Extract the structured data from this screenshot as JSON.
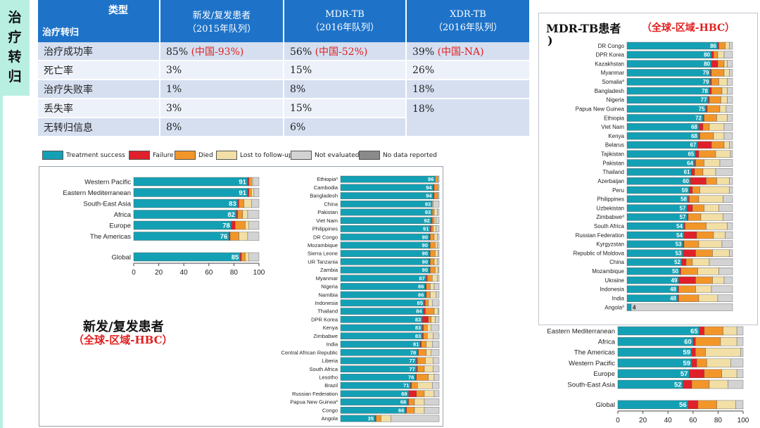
{
  "sidebar": {
    "label_chars": [
      "治",
      "疗",
      "转",
      "归"
    ]
  },
  "table": {
    "header": {
      "type_label": "类型",
      "row_label": "治疗转归",
      "columns": [
        {
          "line1": "新发/复发患者",
          "line2": "（2015年队列）"
        },
        {
          "line1": "MDR-TB",
          "line2": "（2016年队列）"
        },
        {
          "line1": "XDR-TB",
          "line2": "（2016年队列）"
        }
      ]
    },
    "rows": [
      {
        "label": "治疗成功率",
        "cells": [
          {
            "v": "85%",
            "note": "(中国-93%)"
          },
          {
            "v": "56%",
            "note": "(中国-52%)"
          },
          {
            "v": "39%",
            "note": "(中国-NA)"
          }
        ]
      },
      {
        "label": "死亡率",
        "cells": [
          {
            "v": "3%"
          },
          {
            "v": "15%"
          },
          {
            "v": "26%"
          }
        ]
      },
      {
        "label": "治疗失败率",
        "cells": [
          {
            "v": "1%"
          },
          {
            "v": "8%"
          },
          {
            "v": "18%"
          }
        ]
      },
      {
        "label": "丢失率",
        "cells": [
          {
            "v": "3%"
          },
          {
            "v": "15%"
          },
          {
            "v": "18%"
          }
        ]
      },
      {
        "label": "无转归信息",
        "cells": [
          {
            "v": "8%"
          },
          {
            "v": "6%"
          }
        ]
      }
    ]
  },
  "legend": [
    {
      "label": "Treatment success",
      "color": "#14a0b4"
    },
    {
      "label": "Failure",
      "color": "#e0202a"
    },
    {
      "label": "Died",
      "color": "#f2962a"
    },
    {
      "label": "Lost to follow-up",
      "color": "#f2dfa6"
    },
    {
      "label": "Not evaluated",
      "color": "#d3d3d3"
    },
    {
      "label": "No data reported",
      "color": "#8a8a8a"
    }
  ],
  "captions": {
    "left_title": "新发/复发患者",
    "left_sub": "（全球-区域-HBC）",
    "right_title": "MDR-TB患者",
    "right_sub": "（全球-区域-HBC）",
    "right_paren": ")"
  },
  "chart_data": [
    {
      "type": "bar",
      "stacked": true,
      "orientation": "horizontal",
      "xlim": [
        0,
        100
      ],
      "xticks": [
        0,
        20,
        40,
        60,
        80,
        100
      ],
      "categories": [
        "Western Pacific",
        "Eastern Mediterranean",
        "South-East Asia",
        "Africa",
        "Europe",
        "The Americas",
        "Global"
      ],
      "series": [
        {
          "name": "Treatment success",
          "values": [
            91,
            91,
            83,
            82,
            78,
            76,
            85
          ]
        },
        {
          "name": "Failure",
          "values": [
            1,
            1,
            1,
            1,
            3,
            1,
            1
          ]
        },
        {
          "name": "Died",
          "values": [
            2,
            2,
            4,
            4,
            8,
            7,
            3
          ]
        },
        {
          "name": "Lost to follow-up",
          "values": [
            1,
            2,
            6,
            4,
            3,
            7,
            3
          ]
        },
        {
          "name": "Not evaluated",
          "values": [
            5,
            4,
            6,
            9,
            8,
            9,
            8
          ]
        }
      ]
    },
    {
      "type": "bar",
      "stacked": true,
      "orientation": "horizontal",
      "xlim": [
        0,
        100
      ],
      "categories": [
        "Ethiopia",
        "Cambodia",
        "Bangladesh",
        "China",
        "Pakistan",
        "Viet Nam",
        "Philippines",
        "DR Congo",
        "Mozambique",
        "Sierra Leone",
        "UR Tanzania",
        "Zambia",
        "Myanmar",
        "Nigeria",
        "Namibia",
        "Indonesia",
        "Thailand",
        "DPR Korea",
        "Kenya",
        "Zimbabwe",
        "India",
        "Central African Republic",
        "Liberia",
        "South Africa",
        "Lesotho",
        "Brazil",
        "Russian Federation",
        "Papua New Guinea",
        "Congo",
        "Angola"
      ],
      "category_notes": {
        "Ethiopia": "a",
        "Papua New Guinea": "a"
      },
      "series": [
        {
          "name": "Treatment success",
          "values": [
            96,
            94,
            94,
            93,
            93,
            92,
            91,
            90,
            90,
            90,
            90,
            90,
            87,
            86,
            86,
            85,
            84,
            83,
            83,
            83,
            81,
            78,
            77,
            77,
            76,
            71,
            69,
            68,
            66,
            35
          ]
        },
        {
          "name": "Failure",
          "values": [
            0,
            1,
            1,
            0,
            0,
            1,
            1,
            1,
            1,
            1,
            1,
            1,
            1,
            1,
            1,
            1,
            2,
            6,
            1,
            1,
            1,
            1,
            1,
            1,
            1,
            1,
            8,
            1,
            1,
            1
          ]
        },
        {
          "name": "Died",
          "values": [
            2,
            3,
            3,
            0,
            2,
            2,
            2,
            4,
            5,
            5,
            4,
            5,
            5,
            4,
            4,
            3,
            9,
            3,
            4,
            4,
            5,
            8,
            8,
            7,
            12,
            6,
            8,
            6,
            8,
            5
          ]
        },
        {
          "name": "Lost to follow-up",
          "values": [
            1,
            1,
            1,
            1,
            3,
            2,
            3,
            3,
            2,
            3,
            3,
            3,
            5,
            4,
            6,
            4,
            4,
            4,
            4,
            6,
            6,
            5,
            8,
            9,
            6,
            15,
            10,
            10,
            10,
            10
          ]
        },
        {
          "name": "Not evaluated",
          "values": [
            1,
            1,
            1,
            6,
            2,
            3,
            3,
            2,
            2,
            1,
            2,
            1,
            2,
            5,
            3,
            7,
            1,
            4,
            8,
            6,
            7,
            8,
            6,
            6,
            5,
            7,
            5,
            15,
            15,
            49
          ]
        }
      ]
    },
    {
      "type": "bar",
      "stacked": true,
      "orientation": "horizontal",
      "xlim": [
        0,
        100
      ],
      "categories": [
        "DR Congo",
        "DPR Korea",
        "Kazakhstan",
        "Myanmar",
        "Somalia",
        "Bangladesh",
        "Nigeria",
        "Papua New Guinea",
        "Ethiopia",
        "Viet Nam",
        "Kenya",
        "Belarus",
        "Tajikistan",
        "Pakistan",
        "Thailand",
        "Azerbaijan",
        "Peru",
        "Philippines",
        "Uzbekistan",
        "Zimbabwe",
        "South Africa",
        "Russian Federation",
        "Kyrgyzstan",
        "Republic of Moldova",
        "China",
        "Mozambique",
        "Ukraine",
        "Indonesia",
        "India",
        "Angola"
      ],
      "category_notes": {
        "Somalia": "a",
        "Zimbabwe": "a",
        "Angola": "a"
      },
      "series": [
        {
          "name": "Treatment success",
          "values": [
            86,
            80,
            80,
            79,
            79,
            78,
            77,
            75,
            72,
            68,
            68,
            67,
            65,
            64,
            61,
            60,
            59,
            58,
            57,
            57,
            54,
            54,
            53,
            53,
            52,
            50,
            49,
            48,
            48,
            4
          ]
        },
        {
          "name": "Failure",
          "values": [
            1,
            2,
            6,
            1,
            1,
            2,
            1,
            1,
            1,
            4,
            1,
            13,
            3,
            1,
            3,
            15,
            3,
            1,
            5,
            1,
            1,
            12,
            1,
            12,
            4,
            1,
            16,
            1,
            1,
            0
          ]
        },
        {
          "name": "Died",
          "values": [
            6,
            4,
            6,
            12,
            7,
            10,
            11,
            12,
            12,
            6,
            13,
            12,
            16,
            8,
            8,
            10,
            7,
            9,
            11,
            12,
            20,
            16,
            14,
            16,
            6,
            16,
            16,
            16,
            19,
            0
          ]
        },
        {
          "name": "Lost to follow-up",
          "values": [
            4,
            6,
            3,
            5,
            8,
            5,
            6,
            6,
            10,
            14,
            10,
            5,
            14,
            15,
            12,
            12,
            28,
            23,
            14,
            21,
            20,
            11,
            22,
            16,
            16,
            20,
            11,
            15,
            18,
            0
          ]
        },
        {
          "name": "Not evaluated",
          "values": [
            3,
            8,
            5,
            3,
            5,
            5,
            5,
            6,
            5,
            8,
            8,
            3,
            2,
            12,
            16,
            3,
            3,
            9,
            13,
            9,
            5,
            7,
            10,
            3,
            22,
            13,
            8,
            20,
            14,
            96
          ]
        }
      ]
    },
    {
      "type": "bar",
      "stacked": true,
      "orientation": "horizontal",
      "xlim": [
        0,
        100
      ],
      "xticks": [
        0,
        20,
        40,
        60,
        80,
        100
      ],
      "categories": [
        "Eastern Mediterranean",
        "Africa",
        "The Americas",
        "Western Pacific",
        "Europe",
        "South-East Asia",
        "Global"
      ],
      "series": [
        {
          "name": "Treatment success",
          "values": [
            65,
            60,
            59,
            59,
            57,
            52,
            56
          ]
        },
        {
          "name": "Failure",
          "values": [
            4,
            2,
            3,
            4,
            12,
            7,
            8
          ]
        },
        {
          "name": "Died",
          "values": [
            15,
            20,
            8,
            8,
            14,
            14,
            15
          ]
        },
        {
          "name": "Lost to follow-up",
          "values": [
            11,
            13,
            28,
            19,
            12,
            15,
            15
          ]
        },
        {
          "name": "Not evaluated",
          "values": [
            5,
            5,
            2,
            10,
            5,
            12,
            6
          ]
        }
      ]
    }
  ]
}
